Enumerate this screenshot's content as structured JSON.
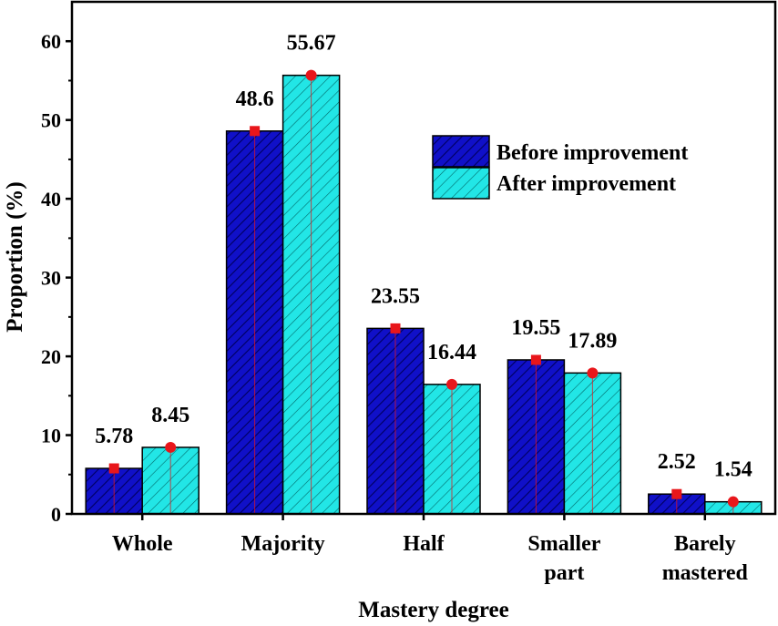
{
  "chart_data": {
    "type": "bar",
    "xlabel": "Mastery degree",
    "ylabel": "Proportion (%)",
    "ylim": [
      0,
      65
    ],
    "yticks": [
      0,
      10,
      20,
      30,
      40,
      50,
      60
    ],
    "categories": [
      [
        "Whole"
      ],
      [
        "Majority"
      ],
      [
        "Half"
      ],
      [
        "Smaller",
        "part"
      ],
      [
        "Barely",
        "mastered"
      ]
    ],
    "series": [
      {
        "name": "Before improvement",
        "values": [
          5.78,
          48.6,
          23.55,
          19.55,
          2.52
        ],
        "labels": [
          "5.78",
          "48.6",
          "23.55",
          "19.55",
          "2.52"
        ],
        "color": "#1010c8",
        "hatch_color": "#000060",
        "marker": "square",
        "marker_color": "#e8161b"
      },
      {
        "name": "After improvement",
        "values": [
          8.45,
          55.67,
          16.44,
          17.89,
          1.54
        ],
        "labels": [
          "8.45",
          "55.67",
          "16.44",
          "17.89",
          "1.54"
        ],
        "color": "#22e6e6",
        "hatch_color": "#006a6a",
        "marker": "circle",
        "marker_color": "#e8161b"
      }
    ],
    "legend_position": "upper-right"
  }
}
